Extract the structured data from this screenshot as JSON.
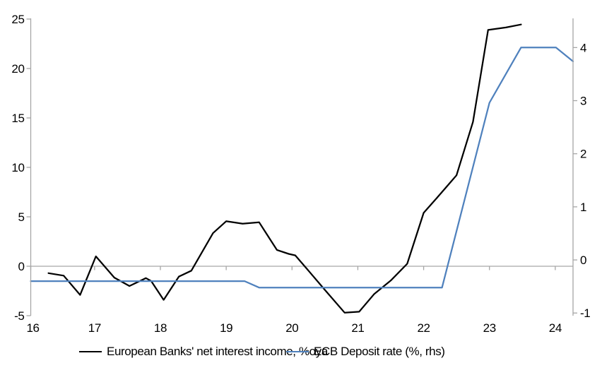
{
  "chart_data": {
    "type": "line",
    "title": "",
    "legend_position": "bottom",
    "background_color": "#ffffff",
    "axis_color": "#a6a6a6",
    "text_color": "#000000",
    "grid": {
      "zero_line_only": true
    },
    "x_axis": {
      "tick_labels": [
        "16",
        "17",
        "18",
        "19",
        "20",
        "21",
        "22",
        "23",
        "24"
      ],
      "tick_values": [
        16,
        17,
        18,
        19,
        20,
        21,
        22,
        23,
        24
      ],
      "range": [
        16.03,
        24.27
      ]
    },
    "y_left_axis": {
      "tick_labels": [
        "-5",
        "0",
        "5",
        "10",
        "15",
        "20",
        "25"
      ],
      "tick_values": [
        -5,
        0,
        5,
        10,
        15,
        20,
        25
      ],
      "range": [
        -5,
        25.07
      ]
    },
    "y_right_axis": {
      "tick_labels": [
        "-1",
        "0",
        "1",
        "2",
        "3",
        "4"
      ],
      "tick_values": [
        -1,
        0,
        1,
        2,
        3,
        4
      ],
      "range": [
        -1.05,
        4.55
      ]
    },
    "series": [
      {
        "name": "European Banks' net interest income, %oya",
        "color": "#000000",
        "axis": "left",
        "line_width": 2.25,
        "points": [
          [
            16.3,
            -0.7
          ],
          [
            16.53,
            -0.95
          ],
          [
            16.78,
            -2.9
          ],
          [
            17.02,
            1.0
          ],
          [
            17.3,
            -1.15
          ],
          [
            17.53,
            -2.0
          ],
          [
            17.78,
            -1.2
          ],
          [
            17.86,
            -1.5
          ],
          [
            18.05,
            -3.4
          ],
          [
            18.28,
            -1.05
          ],
          [
            18.47,
            -0.45
          ],
          [
            18.8,
            3.35
          ],
          [
            19.0,
            4.55
          ],
          [
            19.25,
            4.3
          ],
          [
            19.5,
            4.45
          ],
          [
            19.77,
            1.65
          ],
          [
            19.95,
            1.25
          ],
          [
            20.05,
            1.1
          ],
          [
            20.25,
            -0.45
          ],
          [
            20.5,
            -2.4
          ],
          [
            20.8,
            -4.7
          ],
          [
            21.02,
            -4.6
          ],
          [
            21.25,
            -2.8
          ],
          [
            21.5,
            -1.45
          ],
          [
            21.75,
            0.25
          ],
          [
            22.0,
            5.4
          ],
          [
            22.2,
            6.9
          ],
          [
            22.5,
            9.2
          ],
          [
            22.75,
            14.6
          ],
          [
            22.98,
            23.9
          ],
          [
            23.25,
            24.15
          ],
          [
            23.48,
            24.45
          ]
        ]
      },
      {
        "name": "ECB Deposit rate (%, rhs)",
        "color": "#4f81bd",
        "axis": "right",
        "line_width": 2.25,
        "points": [
          [
            16.03,
            -0.4
          ],
          [
            19.28,
            -0.4
          ],
          [
            19.5,
            -0.52
          ],
          [
            22.28,
            -0.52
          ],
          [
            23.0,
            2.96
          ],
          [
            23.48,
            4.0
          ],
          [
            24.01,
            4.0
          ],
          [
            24.27,
            3.74
          ]
        ]
      }
    ]
  }
}
